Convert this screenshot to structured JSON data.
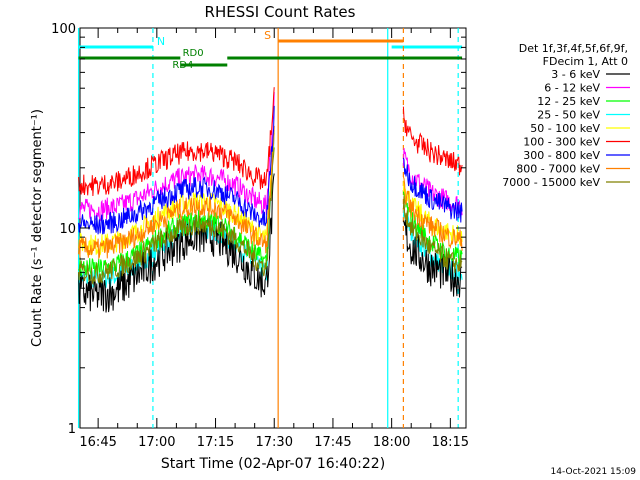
{
  "title": "RHESSI Count Rates",
  "xlabel": "Start Time (02-Apr-07 16:40:22)",
  "ylabel": "Count Rate (s⁻¹ detector segment⁻¹)",
  "timestamp": "14-Oct-2021 15:09",
  "info": [
    "Det 1f,3f,4f,5f,6f,9f,",
    "FDecim 1, Att 0"
  ],
  "chart_data": {
    "type": "line",
    "y_scale": "log",
    "ylim": [
      1,
      100
    ],
    "xlim": [
      "16:40:22",
      "18:19:00"
    ],
    "x_ticks": [
      "16:45",
      "17:00",
      "17:15",
      "17:30",
      "17:45",
      "18:00",
      "18:15"
    ],
    "y_ticks": [
      "1",
      "10",
      "100"
    ],
    "x": [
      "16:40",
      "16:45",
      "16:50",
      "16:55",
      "17:00",
      "17:05",
      "17:10",
      "17:15",
      "17:20",
      "17:25",
      "17:28",
      "17:30",
      "18:03",
      "18:05",
      "18:10",
      "18:15",
      "18:18"
    ],
    "series": [
      {
        "name": "3 - 6 keV",
        "color": "#000000",
        "values": [
          4.8,
          4.6,
          4.9,
          5.8,
          7.0,
          8.3,
          9.2,
          9.0,
          7.6,
          5.8,
          5.2,
          16.0,
          10.0,
          8.0,
          6.4,
          5.8,
          5.5
        ]
      },
      {
        "name": "6 - 12 keV",
        "color": "#ff00ff",
        "values": [
          12.5,
          12.3,
          12.8,
          14.0,
          15.8,
          17.5,
          18.4,
          18.0,
          16.4,
          13.8,
          12.8,
          44.0,
          23.0,
          18.5,
          15.0,
          13.5,
          13.0
        ]
      },
      {
        "name": "12 - 25 keV",
        "color": "#00ff00",
        "values": [
          6.4,
          6.2,
          6.6,
          7.4,
          8.8,
          10.2,
          11.0,
          10.7,
          9.4,
          7.5,
          6.7,
          30.0,
          14.0,
          11.0,
          8.5,
          7.3,
          7.0
        ]
      },
      {
        "name": "25 - 50 keV",
        "color": "#00ffff",
        "values": [
          5.7,
          5.5,
          5.8,
          6.6,
          7.9,
          9.2,
          10.0,
          9.7,
          8.4,
          6.6,
          5.9,
          28.0,
          12.0,
          9.5,
          7.2,
          6.2,
          5.9
        ]
      },
      {
        "name": "50 - 100 keV",
        "color": "#ffff00",
        "values": [
          8.4,
          8.2,
          8.6,
          9.6,
          11.2,
          12.8,
          13.7,
          13.3,
          11.8,
          9.6,
          8.7,
          30.0,
          17.0,
          13.0,
          10.5,
          9.4,
          9.0
        ]
      },
      {
        "name": "100 - 300 keV",
        "color": "#ff0000",
        "values": [
          16.5,
          16.3,
          17.0,
          18.8,
          21.0,
          23.3,
          24.5,
          23.8,
          21.5,
          18.0,
          16.6,
          46.0,
          36.0,
          28.0,
          24.0,
          21.5,
          20.5
        ]
      },
      {
        "name": "300 - 800 keV",
        "color": "#0000ff",
        "values": [
          10.5,
          10.3,
          10.8,
          11.9,
          13.5,
          15.2,
          16.0,
          15.6,
          14.0,
          11.6,
          10.7,
          36.0,
          21.0,
          17.0,
          14.0,
          12.5,
          12.0
        ]
      },
      {
        "name": "800 - 7000 keV",
        "color": "#ff8000",
        "values": [
          8.0,
          7.8,
          8.2,
          9.2,
          10.7,
          12.2,
          13.0,
          12.6,
          11.2,
          9.1,
          8.2,
          29.0,
          16.0,
          12.5,
          10.2,
          9.0,
          8.7
        ]
      },
      {
        "name": "7000 - 15000 keV",
        "color": "#808000",
        "values": [
          6.1,
          5.9,
          6.3,
          7.1,
          8.4,
          9.7,
          10.5,
          10.2,
          8.9,
          7.0,
          6.3,
          26.0,
          13.0,
          10.0,
          7.9,
          6.8,
          6.5
        ]
      }
    ],
    "annotations": [
      {
        "label": "N",
        "color": "#00ffff",
        "kind": "night",
        "intervals": [
          [
            "16:40",
            "16:59"
          ],
          [
            "18:00",
            "18:18"
          ]
        ],
        "markers": [
          "16:40",
          "16:59",
          "17:59",
          "18:17"
        ]
      },
      {
        "label": "S",
        "color": "#ff8000",
        "kind": "SAA",
        "intervals": [
          [
            "17:31",
            "18:03"
          ]
        ],
        "markers": [
          "17:31",
          "18:03"
        ]
      },
      {
        "label": "RD0",
        "color": "#008000",
        "kind": "decimation",
        "intervals": [
          [
            "16:40",
            "17:06"
          ],
          [
            "17:18",
            "18:18"
          ]
        ]
      },
      {
        "label": "RD4",
        "color": "#008000",
        "kind": "decimation",
        "intervals": [
          [
            "17:06",
            "17:18"
          ]
        ]
      }
    ],
    "gap": [
      "17:30",
      "18:03"
    ],
    "legend_position": "right",
    "grid": false
  }
}
